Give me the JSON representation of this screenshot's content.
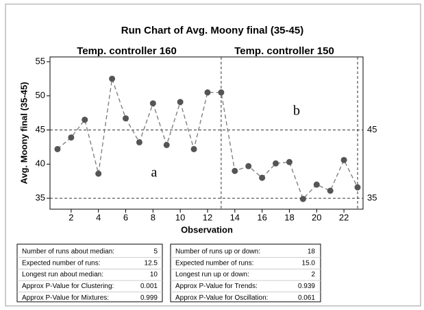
{
  "chart_data": {
    "type": "line",
    "title": "Run Chart of Avg. Moony final (35-45)",
    "phase_labels": [
      "Temp. controller 160",
      "Temp. controller 150"
    ],
    "annotations": [
      "a",
      "b"
    ],
    "y_label": "Avg. Moony final (35-45)",
    "x_label": "Observation",
    "x": [
      1,
      2,
      3,
      4,
      5,
      6,
      7,
      8,
      9,
      10,
      11,
      12,
      13,
      14,
      15,
      16,
      17,
      18,
      19,
      20,
      21,
      22,
      23
    ],
    "values": [
      42.2,
      43.9,
      46.5,
      38.6,
      52.5,
      46.7,
      43.2,
      48.9,
      42.8,
      49.1,
      42.2,
      50.5,
      50.5,
      39.0,
      39.7,
      38.0,
      40.1,
      40.3,
      34.9,
      37.0,
      36.1,
      40.6,
      36.6
    ],
    "color": "#555555",
    "xlim": [
      0.45,
      23.4
    ],
    "xticks": [
      2,
      4,
      6,
      8,
      10,
      12,
      14,
      16,
      18,
      20,
      22
    ],
    "ylim": [
      33.4,
      55.7
    ],
    "yticks": [
      35,
      40,
      45,
      50,
      55
    ],
    "reference_lines": [
      45,
      35
    ],
    "phase_lines": [
      13,
      23
    ]
  },
  "tables": [
    {
      "rows": [
        [
          "Number of runs about median:",
          "5"
        ],
        [
          "Expected number of runs:",
          "12.5"
        ],
        [
          "Longest run about median:",
          "10"
        ],
        [
          "Approx P-Value for Clustering:",
          "0.001"
        ],
        [
          "Approx P-Value for Mixtures:",
          "0.999"
        ]
      ]
    },
    {
      "rows": [
        [
          "Number of runs up or down:",
          "18"
        ],
        [
          "Expected number of runs:",
          "15.0"
        ],
        [
          "Longest run up or down:",
          "2"
        ],
        [
          "Approx P-Value for Trends:",
          "0.939"
        ],
        [
          "Approx P-Value for Oscillation:",
          "0.061"
        ]
      ]
    }
  ]
}
